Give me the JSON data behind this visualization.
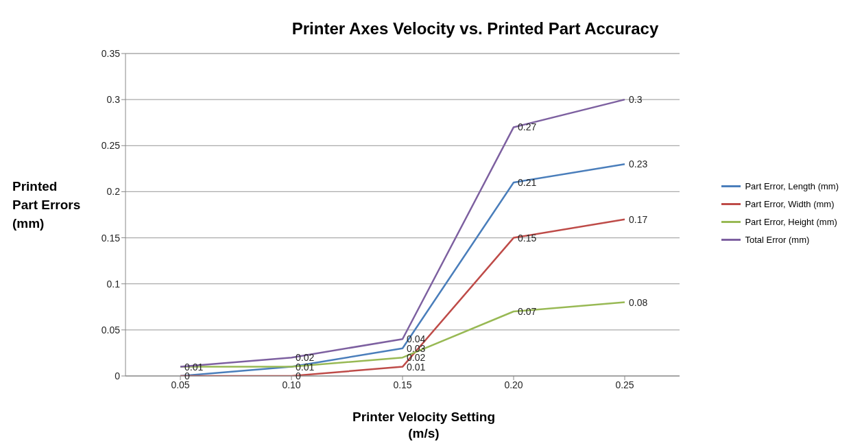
{
  "chart_data": {
    "type": "line",
    "title": "Printer Axes Velocity vs. Printed Part Accuracy",
    "xlabel": "Printer Velocity Setting\n(m/s)",
    "ylabel": "Printed\nPart Errors\n(mm)",
    "categories": [
      "0.05",
      "0.10",
      "0.15",
      "0.20",
      "0.25"
    ],
    "series": [
      {
        "name": "Part Error, Length (mm)",
        "color": "#4a7ebb",
        "values": [
          0,
          0.01,
          0.03,
          0.21,
          0.23
        ],
        "value_labels": [
          "0",
          "0.01",
          "0.03",
          "0.21",
          "0.23"
        ]
      },
      {
        "name": "Part Error, Width (mm)",
        "color": "#be4b48",
        "values": [
          0,
          0,
          0.01,
          0.15,
          0.17
        ],
        "value_labels": [
          null,
          "0",
          "0.01",
          "0.15",
          "0.17"
        ]
      },
      {
        "name": "Part Error, Height (mm)",
        "color": "#98b954",
        "values": [
          0.01,
          0.01,
          0.02,
          0.07,
          0.08
        ],
        "value_labels": [
          "0.01",
          null,
          "0.02",
          "0.07",
          "0.08"
        ]
      },
      {
        "name": "Total Error (mm)",
        "color": "#7d60a0",
        "values": [
          0.01,
          0.02,
          0.04,
          0.27,
          0.3
        ],
        "value_labels": [
          null,
          "0.02",
          "0.04",
          "0.27",
          "0.3"
        ]
      }
    ],
    "ylim": [
      0,
      0.35
    ],
    "yticks": [
      0,
      0.05,
      0.1,
      0.15,
      0.2,
      0.25,
      0.3,
      0.35
    ],
    "grid": "y",
    "legend": "right",
    "marker": "none",
    "line_style": "solid"
  }
}
